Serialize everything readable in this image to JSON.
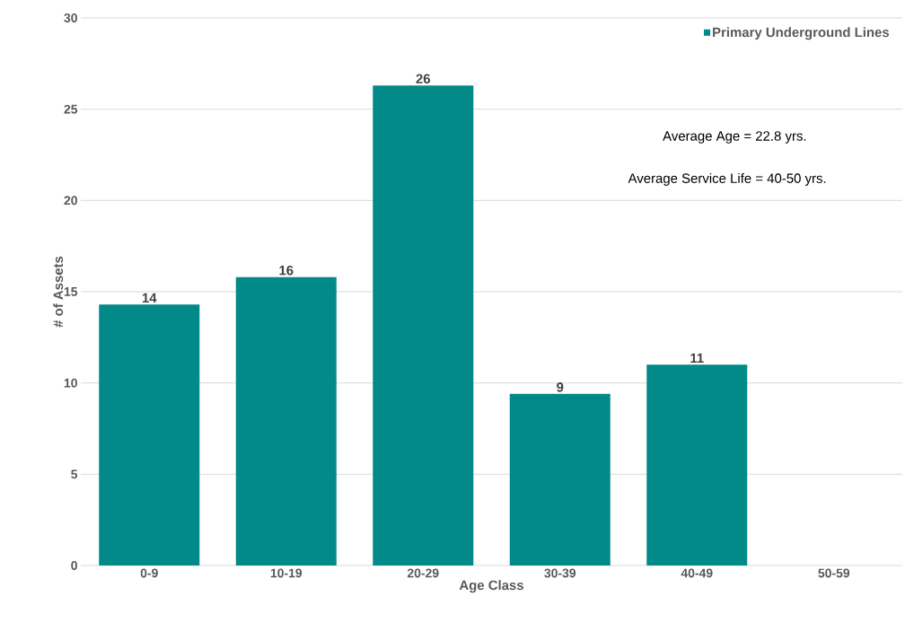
{
  "chart_data": {
    "type": "bar",
    "xlabel": "Age Class",
    "ylabel": "# of Assets",
    "categories": [
      "0-9",
      "10-19",
      "20-29",
      "30-39",
      "40-49",
      "50-59"
    ],
    "series": [
      {
        "name": "Primary Underground Lines",
        "color": "#028a89",
        "values": [
          14.3,
          15.8,
          26.3,
          9.4,
          11.0,
          null
        ],
        "value_labels": [
          "14",
          "16",
          "26",
          "9",
          "11",
          null
        ]
      }
    ],
    "ylim": [
      0,
      30
    ],
    "yticks": [
      0,
      5,
      10,
      15,
      20,
      25,
      30
    ],
    "grid": "y",
    "legend": "top right",
    "annotations": [
      "Average Age = 22.8 yrs.",
      "Average Service Life = 40-50 yrs."
    ]
  }
}
